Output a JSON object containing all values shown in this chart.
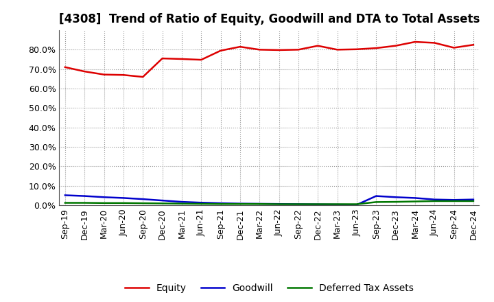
{
  "title": "[4308]  Trend of Ratio of Equity, Goodwill and DTA to Total Assets",
  "x_labels": [
    "Sep-19",
    "Dec-19",
    "Mar-20",
    "Jun-20",
    "Sep-20",
    "Dec-20",
    "Mar-21",
    "Jun-21",
    "Sep-21",
    "Dec-21",
    "Mar-22",
    "Jun-22",
    "Sep-22",
    "Dec-22",
    "Mar-23",
    "Jun-23",
    "Sep-23",
    "Dec-23",
    "Mar-24",
    "Jun-24",
    "Sep-24",
    "Dec-24"
  ],
  "equity": [
    0.71,
    0.688,
    0.672,
    0.67,
    0.66,
    0.755,
    0.752,
    0.748,
    0.795,
    0.815,
    0.8,
    0.798,
    0.8,
    0.82,
    0.8,
    0.802,
    0.808,
    0.82,
    0.84,
    0.835,
    0.81,
    0.825
  ],
  "goodwill": [
    0.052,
    0.048,
    0.042,
    0.038,
    0.032,
    0.025,
    0.018,
    0.014,
    0.011,
    0.009,
    0.008,
    0.007,
    0.006,
    0.005,
    0.004,
    0.003,
    0.048,
    0.042,
    0.038,
    0.03,
    0.028,
    0.03
  ],
  "dta": [
    0.013,
    0.013,
    0.012,
    0.012,
    0.011,
    0.01,
    0.009,
    0.008,
    0.007,
    0.007,
    0.007,
    0.006,
    0.006,
    0.006,
    0.006,
    0.006,
    0.017,
    0.018,
    0.02,
    0.022,
    0.022,
    0.022
  ],
  "equity_color": "#dd0000",
  "goodwill_color": "#0000cc",
  "dta_color": "#007700",
  "background_color": "#ffffff",
  "plot_bg_color": "#ffffff",
  "grid_color": "#999999",
  "ylim": [
    0.0,
    0.9
  ],
  "yticks": [
    0.0,
    0.1,
    0.2,
    0.3,
    0.4,
    0.5,
    0.6,
    0.7,
    0.8
  ],
  "legend_labels": [
    "Equity",
    "Goodwill",
    "Deferred Tax Assets"
  ],
  "linewidth": 1.8,
  "title_fontsize": 12,
  "tick_fontsize": 9,
  "legend_fontsize": 10
}
